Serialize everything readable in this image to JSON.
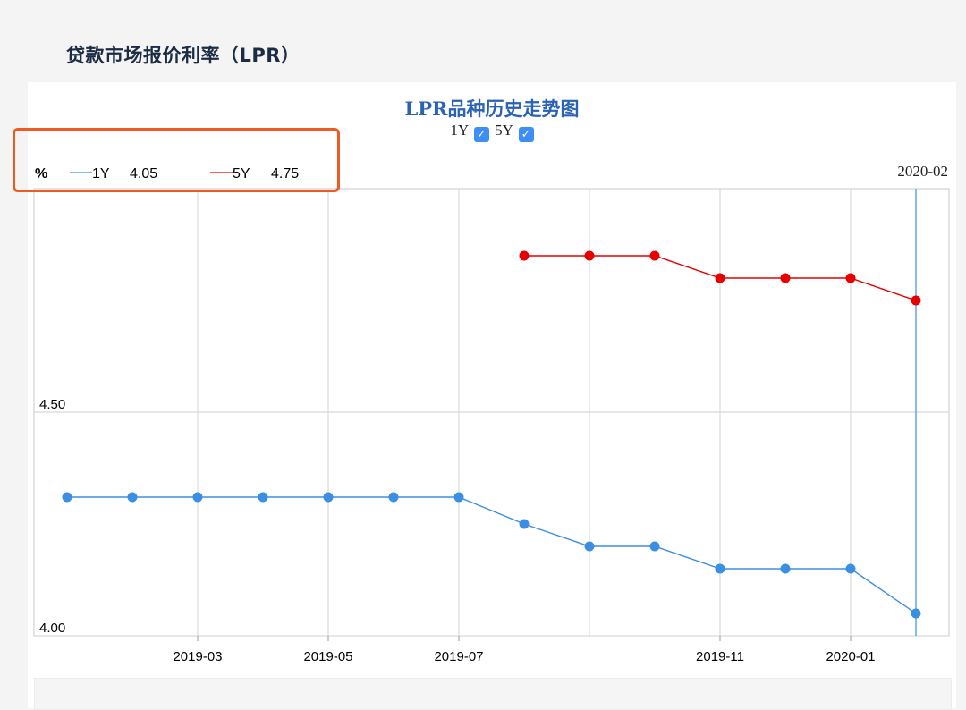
{
  "page": {
    "title": "贷款市场报价利率（LPR）"
  },
  "chart": {
    "title": "LPR品种历史走势图",
    "toggles": [
      {
        "label": "1Y",
        "checked": true
      },
      {
        "label": "5Y",
        "checked": true
      }
    ],
    "legend": {
      "unit": "%",
      "items": [
        {
          "name": "1Y",
          "value": "4.05",
          "color": "#3b8fe3"
        },
        {
          "name": "5Y",
          "value": "4.75",
          "color": "#e60000"
        }
      ]
    },
    "hover_date": "2020-02"
  },
  "chart_data": {
    "type": "line",
    "title": "LPR品种历史走势图",
    "x_start": "2019-01",
    "x_end": "2020-02",
    "x": [
      "2019-01",
      "2019-02",
      "2019-03",
      "2019-04",
      "2019-05",
      "2019-06",
      "2019-07",
      "2019-08",
      "2019-09",
      "2019-10",
      "2019-11",
      "2019-12",
      "2020-01",
      "2020-02"
    ],
    "x_tick_labels": [
      "2019-03",
      "2019-05",
      "2019-07",
      "2019-11",
      "2020-01"
    ],
    "ylim": [
      4.0,
      5.0
    ],
    "y_tick_labels": [
      "4.00",
      "4.50"
    ],
    "ylabel": "%",
    "grid": true,
    "series": [
      {
        "name": "1Y",
        "color": "#3b8fe3",
        "values": [
          4.31,
          4.31,
          4.31,
          4.31,
          4.31,
          4.31,
          4.31,
          4.25,
          4.2,
          4.2,
          4.15,
          4.15,
          4.15,
          4.05
        ]
      },
      {
        "name": "5Y",
        "color": "#e60000",
        "values": [
          null,
          null,
          null,
          null,
          null,
          null,
          null,
          4.85,
          4.85,
          4.85,
          4.8,
          4.8,
          4.8,
          4.75
        ]
      }
    ]
  }
}
